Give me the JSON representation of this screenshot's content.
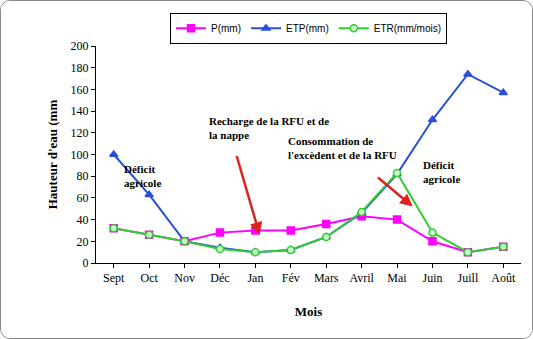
{
  "chart_data": {
    "type": "line",
    "x_label": "Mois",
    "y_label": "Hauteur d'eau (mm",
    "categories": [
      "Sept",
      "Oct",
      "Nov",
      "Déc",
      "Jan",
      "Fév",
      "Mars",
      "Avril",
      "Mai",
      "Juin",
      "Juill",
      "Août"
    ],
    "series": [
      {
        "name": "P(mm)",
        "color": "#ff00ff",
        "marker": "square",
        "values": [
          32,
          26,
          20,
          28,
          30,
          30,
          36,
          43,
          40,
          20,
          10,
          15
        ]
      },
      {
        "name": "ETP(mm)",
        "color": "#2a4fd8",
        "marker": "triangle-up",
        "values": [
          100,
          63,
          20,
          14,
          10,
          12,
          24,
          46,
          82,
          132,
          174,
          157
        ]
      },
      {
        "name": "ETR(mm/mois)",
        "color": "#33cc33",
        "marker": "circle",
        "values": [
          32,
          26,
          20,
          13,
          10,
          12,
          24,
          47,
          83,
          28,
          10,
          15
        ]
      }
    ],
    "ylim": [
      0,
      200
    ],
    "yticks": [
      0,
      20,
      40,
      60,
      80,
      100,
      120,
      140,
      160,
      180,
      200
    ],
    "grid": false,
    "legend": "top",
    "annotations": [
      {
        "lines": [
          "Déficit",
          "agricole"
        ]
      },
      {
        "lines": [
          "Recharge de la RFU et de",
          "la nappe"
        ]
      },
      {
        "lines": [
          "Consommation de",
          "l'excèdent et de la RFU"
        ]
      },
      {
        "lines": [
          "Déficit",
          "agricole"
        ]
      }
    ]
  }
}
